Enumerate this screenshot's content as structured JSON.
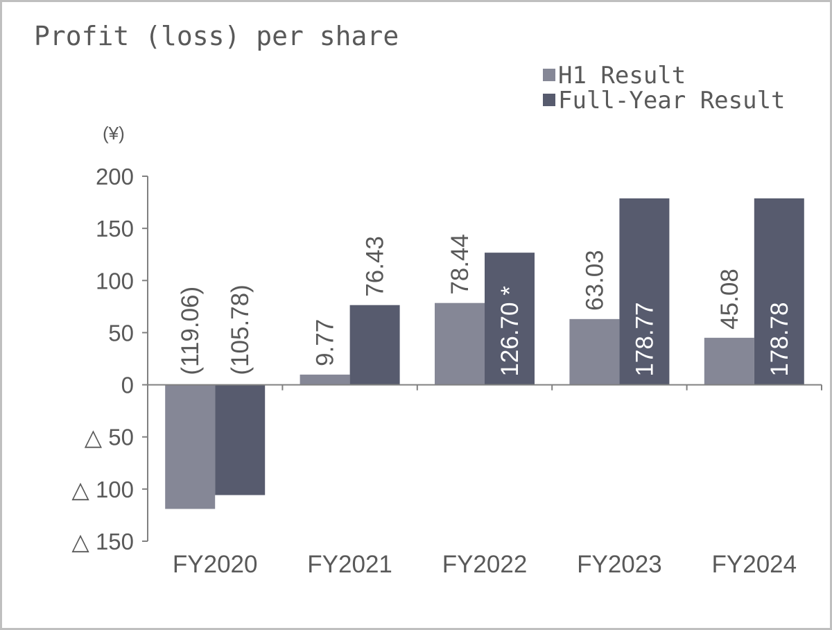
{
  "chart_data": {
    "type": "bar",
    "title": "Profit (loss) per share",
    "unit": "(¥)",
    "categories": [
      "FY2020",
      "FY2021",
      "FY2022",
      "FY2023",
      "FY2024"
    ],
    "series": [
      {
        "name": "H1 Result",
        "color": "#858796",
        "values": [
          -119.06,
          9.77,
          78.44,
          63.03,
          45.08
        ],
        "labels": [
          "(119.06)",
          "9.77",
          "78.44",
          "63.03",
          "45.08"
        ]
      },
      {
        "name": "Full-Year Result",
        "color": "#575b6e",
        "values": [
          -105.78,
          76.43,
          126.7,
          178.77,
          178.78
        ],
        "labels": [
          "(105.78)",
          "76.43",
          "126.70 *",
          "178.77",
          "178.78"
        ]
      }
    ],
    "ylim": [
      -150,
      200
    ],
    "yticks": [
      200,
      150,
      100,
      50,
      0,
      -50,
      -100,
      -150
    ],
    "ytick_labels": [
      "200",
      "150",
      "100",
      "50",
      "0",
      "△ 50",
      "△ 100",
      "△ 150"
    ],
    "legend_position": "top-right",
    "grid": false
  }
}
